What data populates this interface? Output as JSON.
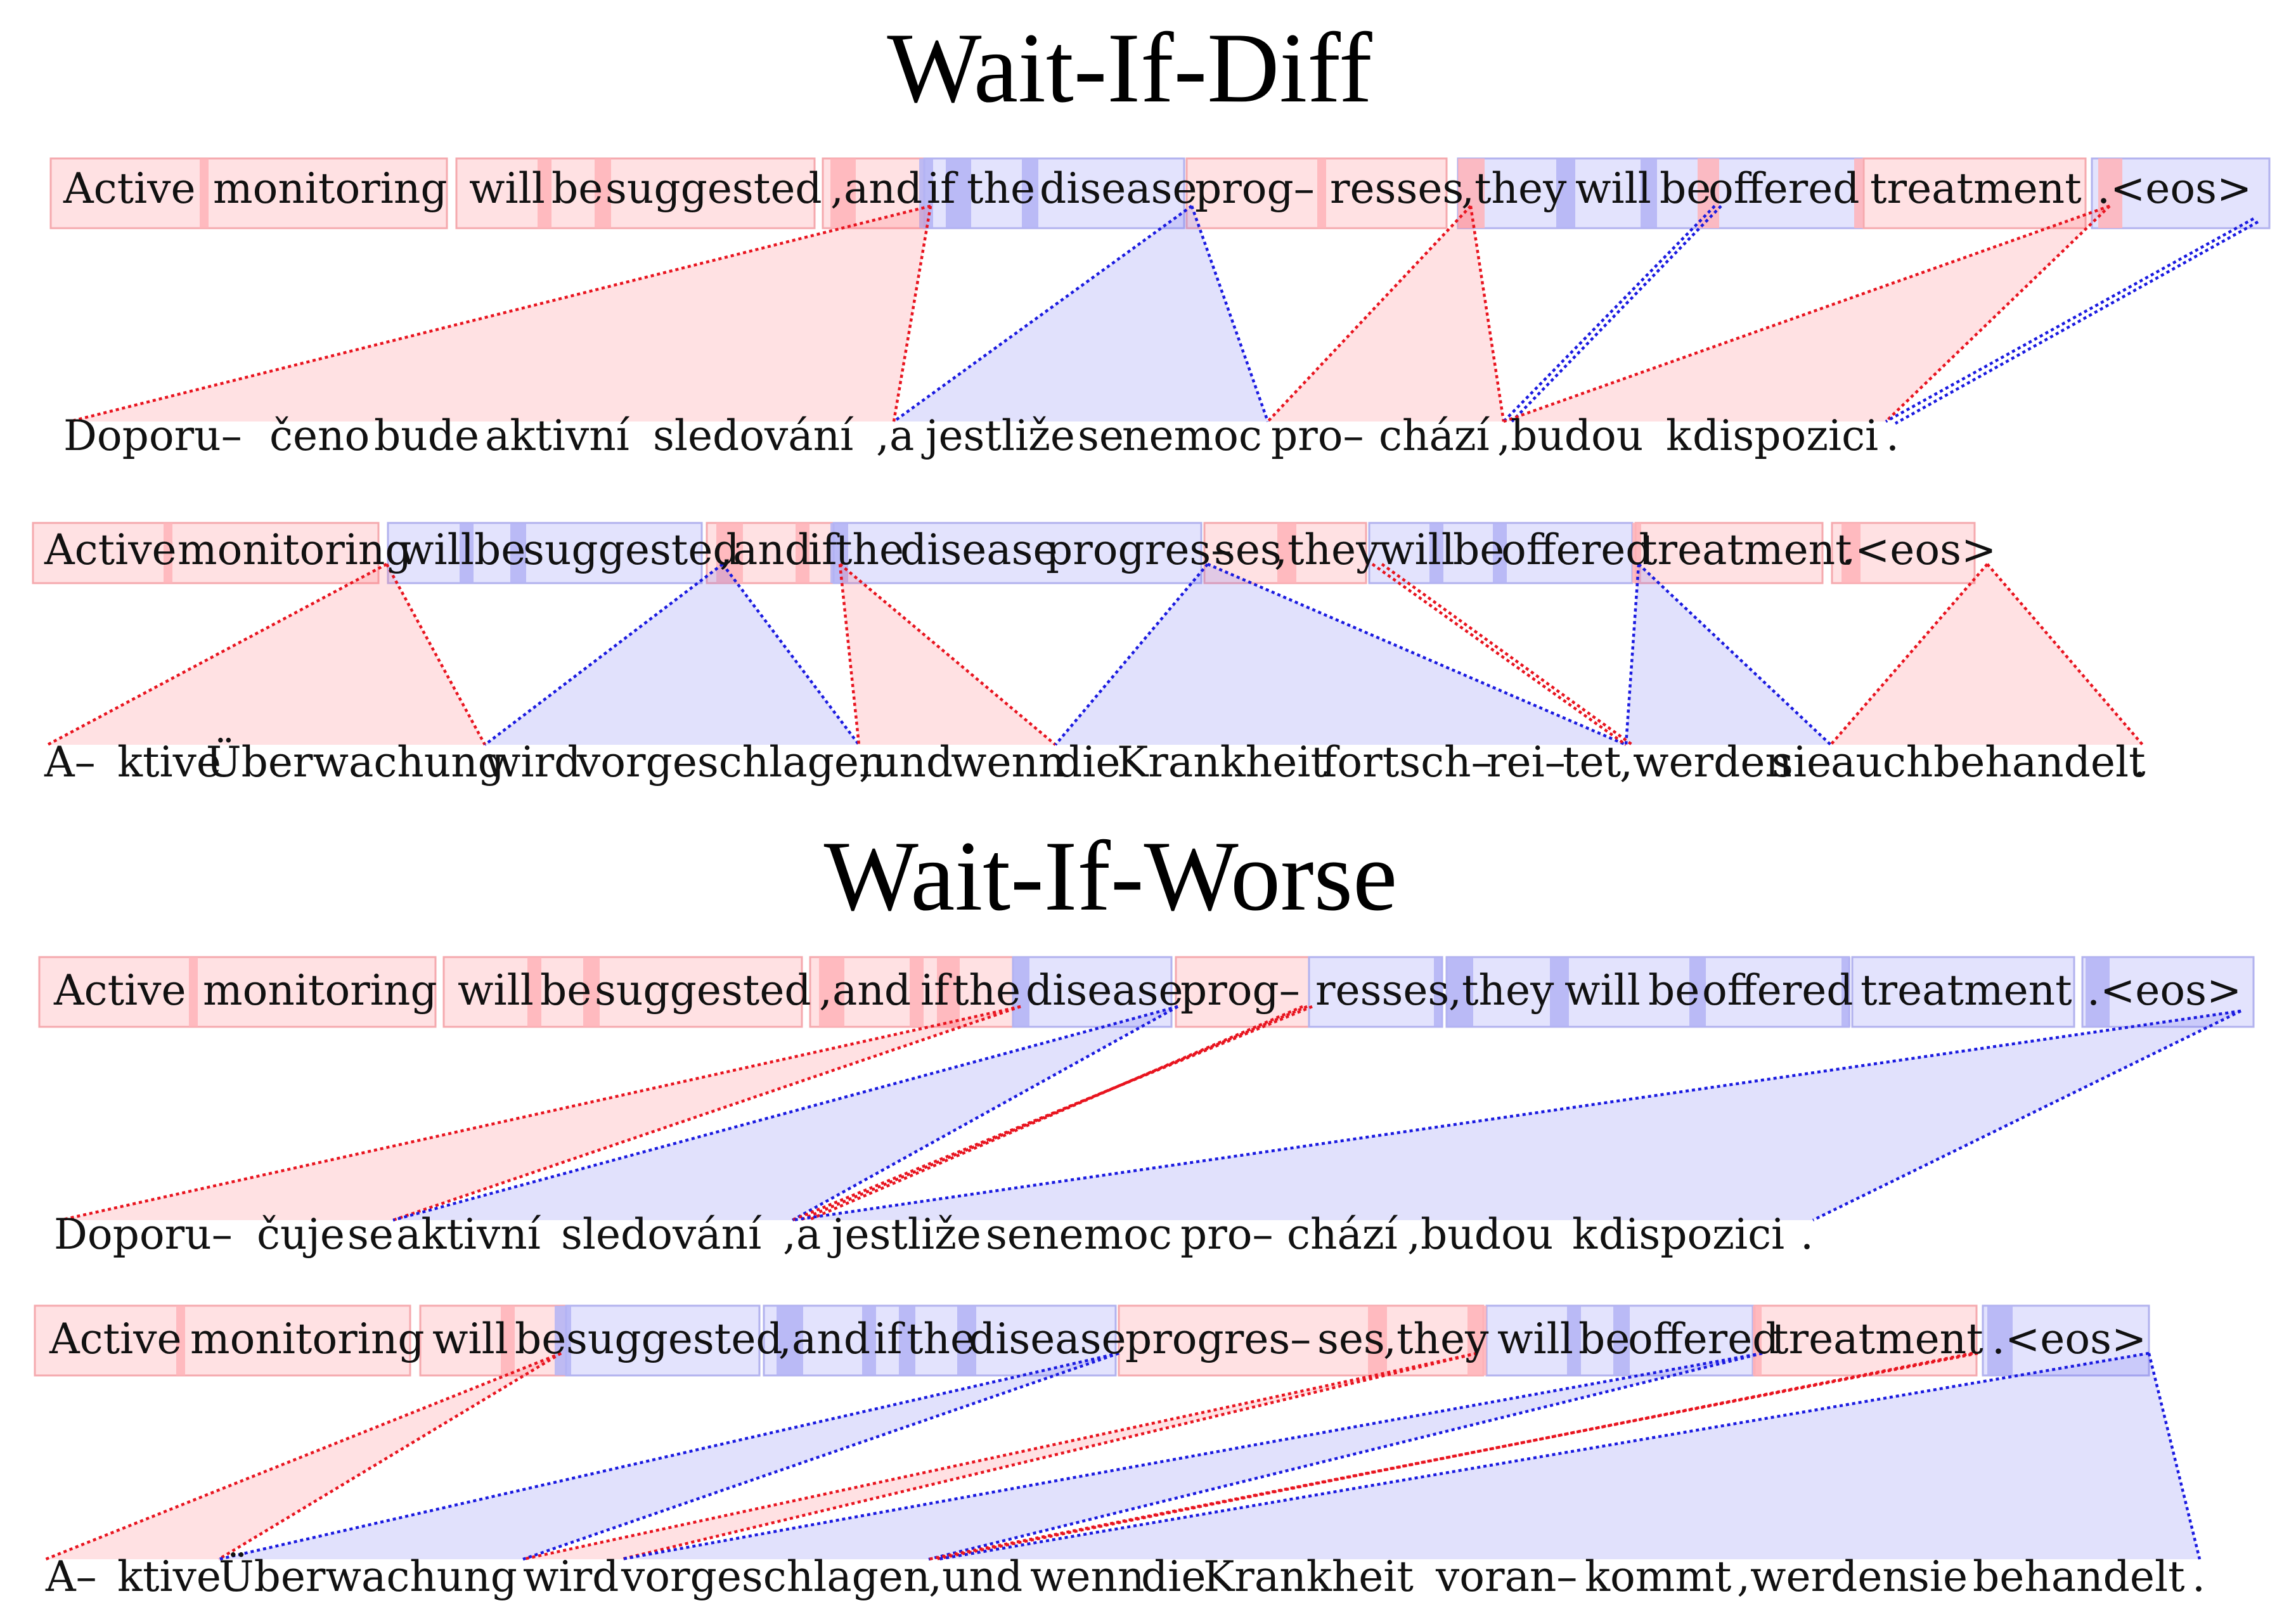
{
  "titles": {
    "diff": "Wait-If-Diff",
    "worse": "Wait-If-Worse"
  },
  "colors": {
    "read_action": "#ffcfd2",
    "write_action": "#d2d2fb",
    "red_link": "#e8141f",
    "blue_link": "#1a1ae0"
  },
  "panels": [
    {
      "section": "diff",
      "boxes": [
        {
          "color": "red",
          "words": [
            "Active",
            "monitoring"
          ]
        },
        {
          "color": "red",
          "words": [
            "will",
            "be",
            "suggested"
          ]
        },
        {
          "color": "red",
          "words": [
            ",and",
            "if"
          ]
        },
        {
          "color": "blue",
          "words": [
            "the",
            "disease"
          ]
        },
        {
          "color": "red",
          "words": [
            "prog–",
            "resses"
          ]
        },
        {
          "color": "blue",
          "words": [
            ",they",
            "will",
            "be"
          ]
        },
        {
          "color": "red",
          "words": [
            "offered",
            "treatment"
          ]
        },
        {
          "color": "blue",
          "words": [
            ".<eos>"
          ]
        }
      ],
      "target_words": [
        "Doporu–",
        "čeno",
        "bude",
        "aktivní",
        "sledování",
        ",a",
        "jestliže",
        "se",
        "nemoc",
        "pro–",
        "chází",
        ",budou",
        "k",
        "dispozici",
        "."
      ]
    },
    {
      "section": "diff",
      "boxes": [
        {
          "color": "red",
          "words": [
            "Active",
            "monitoring"
          ]
        },
        {
          "color": "blue",
          "words": [
            "will",
            "be",
            "suggested"
          ]
        },
        {
          "color": "red",
          "words": [
            ",and",
            "if"
          ]
        },
        {
          "color": "blue",
          "words": [
            "the",
            "disease",
            "progres–"
          ]
        },
        {
          "color": "red",
          "words": [
            "ses",
            ",they"
          ]
        },
        {
          "color": "blue",
          "words": [
            "will",
            "be",
            "offered"
          ]
        },
        {
          "color": "red",
          "words": [
            "treatment"
          ]
        },
        {
          "color": "red",
          "words": [
            ".<eos>"
          ]
        }
      ],
      "target_words": [
        "A–",
        "ktive",
        "Überwachung",
        "wird",
        "vorgeschlagen",
        ",und",
        "wenn",
        "die",
        "Krankheit",
        "fortsch–",
        "rei–",
        "tet",
        ",werden",
        "sie",
        "auch",
        "behandelt",
        "."
      ]
    },
    {
      "section": "worse",
      "boxes": [
        {
          "color": "red",
          "words": [
            "Active",
            "monitoring"
          ]
        },
        {
          "color": "red",
          "words": [
            "will",
            "be",
            "suggested"
          ]
        },
        {
          "color": "red",
          "words": [
            ",and",
            "if",
            "the"
          ]
        },
        {
          "color": "blue",
          "words": [
            "disease"
          ]
        },
        {
          "color": "red",
          "words": [
            "prog–"
          ]
        },
        {
          "color": "blue",
          "words": [
            "resses"
          ]
        },
        {
          "color": "blue",
          "words": [
            ",they",
            "will",
            "be",
            "offered"
          ]
        },
        {
          "color": "blue",
          "words": [
            "treatment"
          ]
        },
        {
          "color": "blue",
          "words": [
            ".<eos>"
          ]
        }
      ],
      "target_words": [
        "Doporu–",
        "čuje",
        "se",
        "aktivní",
        "sledování",
        ",a",
        "jestliže",
        "se",
        "nemoc",
        "pro–",
        "chází",
        ",budou",
        "k",
        "dispozici",
        "."
      ]
    },
    {
      "section": "worse",
      "boxes": [
        {
          "color": "red",
          "words": [
            "Active",
            "monitoring"
          ]
        },
        {
          "color": "red",
          "words": [
            "will",
            "be"
          ]
        },
        {
          "color": "blue",
          "words": [
            "suggested"
          ]
        },
        {
          "color": "blue",
          "words": [
            ",and",
            "if",
            "the",
            "disease"
          ]
        },
        {
          "color": "red",
          "words": [
            "progres–",
            "ses",
            ",they"
          ]
        },
        {
          "color": "blue",
          "words": [
            "will",
            "be",
            "offered"
          ]
        },
        {
          "color": "red",
          "words": [
            "treatment"
          ]
        },
        {
          "color": "blue",
          "words": [
            ".<eos>"
          ]
        }
      ],
      "target_words": [
        "A–",
        "ktive",
        "Überwachung",
        "wird",
        "vorgeschlagen",
        ",und",
        "wenn",
        "die",
        "Krankheit",
        "voran–",
        "kommt",
        ",werden",
        "sie",
        "behandelt",
        "."
      ]
    }
  ]
}
